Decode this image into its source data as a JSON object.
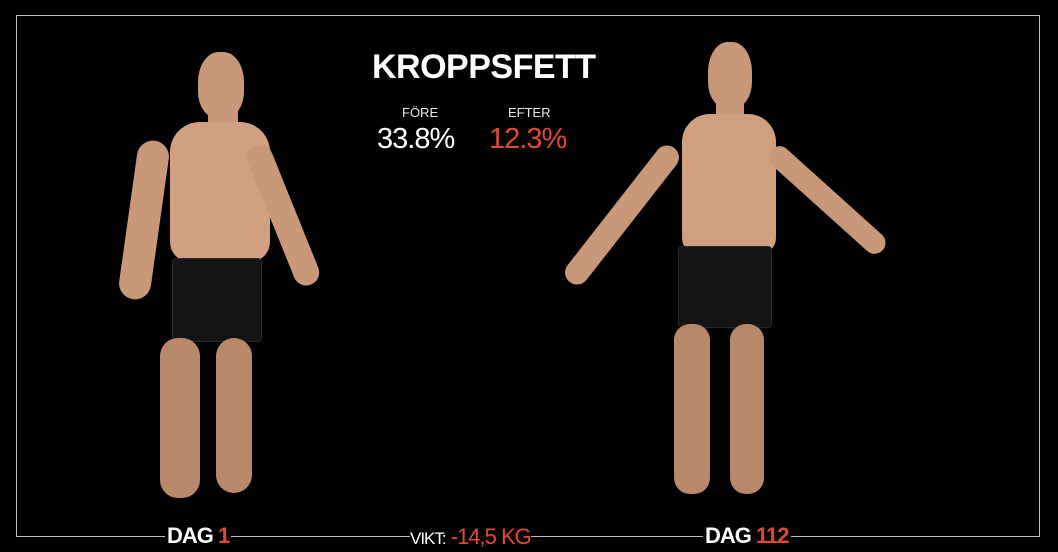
{
  "heading": "KROPPSFETT",
  "before": {
    "label": "FÖRE",
    "value": "33.8%"
  },
  "after": {
    "label": "EFTER",
    "value": "12.3%"
  },
  "day_left": {
    "label": "DAG",
    "number": "1"
  },
  "day_right": {
    "label": "DAG",
    "number": "112"
  },
  "weight": {
    "label": "VIKT:",
    "value": "-14,5 KG"
  },
  "colors": {
    "accent": "#e04a33",
    "text": "#ffffff",
    "background": "#000000"
  }
}
